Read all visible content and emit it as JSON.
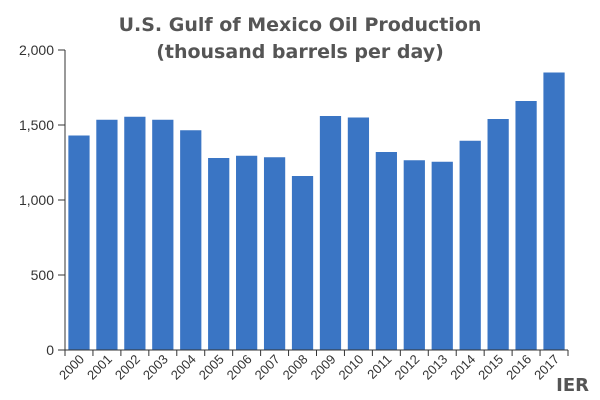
{
  "chart_data": {
    "type": "bar",
    "title": "U.S. Gulf of Mexico Oil Production",
    "subtitle": "(thousand barrels per day)",
    "categories": [
      "2000",
      "2001",
      "2002",
      "2003",
      "2004",
      "2005",
      "2006",
      "2007",
      "2008",
      "2009",
      "2010",
      "2011",
      "2012",
      "2013",
      "2014",
      "2015",
      "2016",
      "2017"
    ],
    "values": [
      1430,
      1535,
      1555,
      1535,
      1465,
      1280,
      1295,
      1285,
      1160,
      1560,
      1550,
      1320,
      1265,
      1255,
      1395,
      1540,
      1660,
      1850
    ],
    "y_ticks": [
      "0",
      "500",
      "1,000",
      "1,500",
      "2,000"
    ],
    "ylim": [
      0,
      2000
    ],
    "grid": false,
    "legend": "none",
    "colors": {
      "bar": "#3a75c4",
      "axis": "#333333",
      "title": "#555555"
    }
  },
  "brand": {
    "label": "IER"
  }
}
